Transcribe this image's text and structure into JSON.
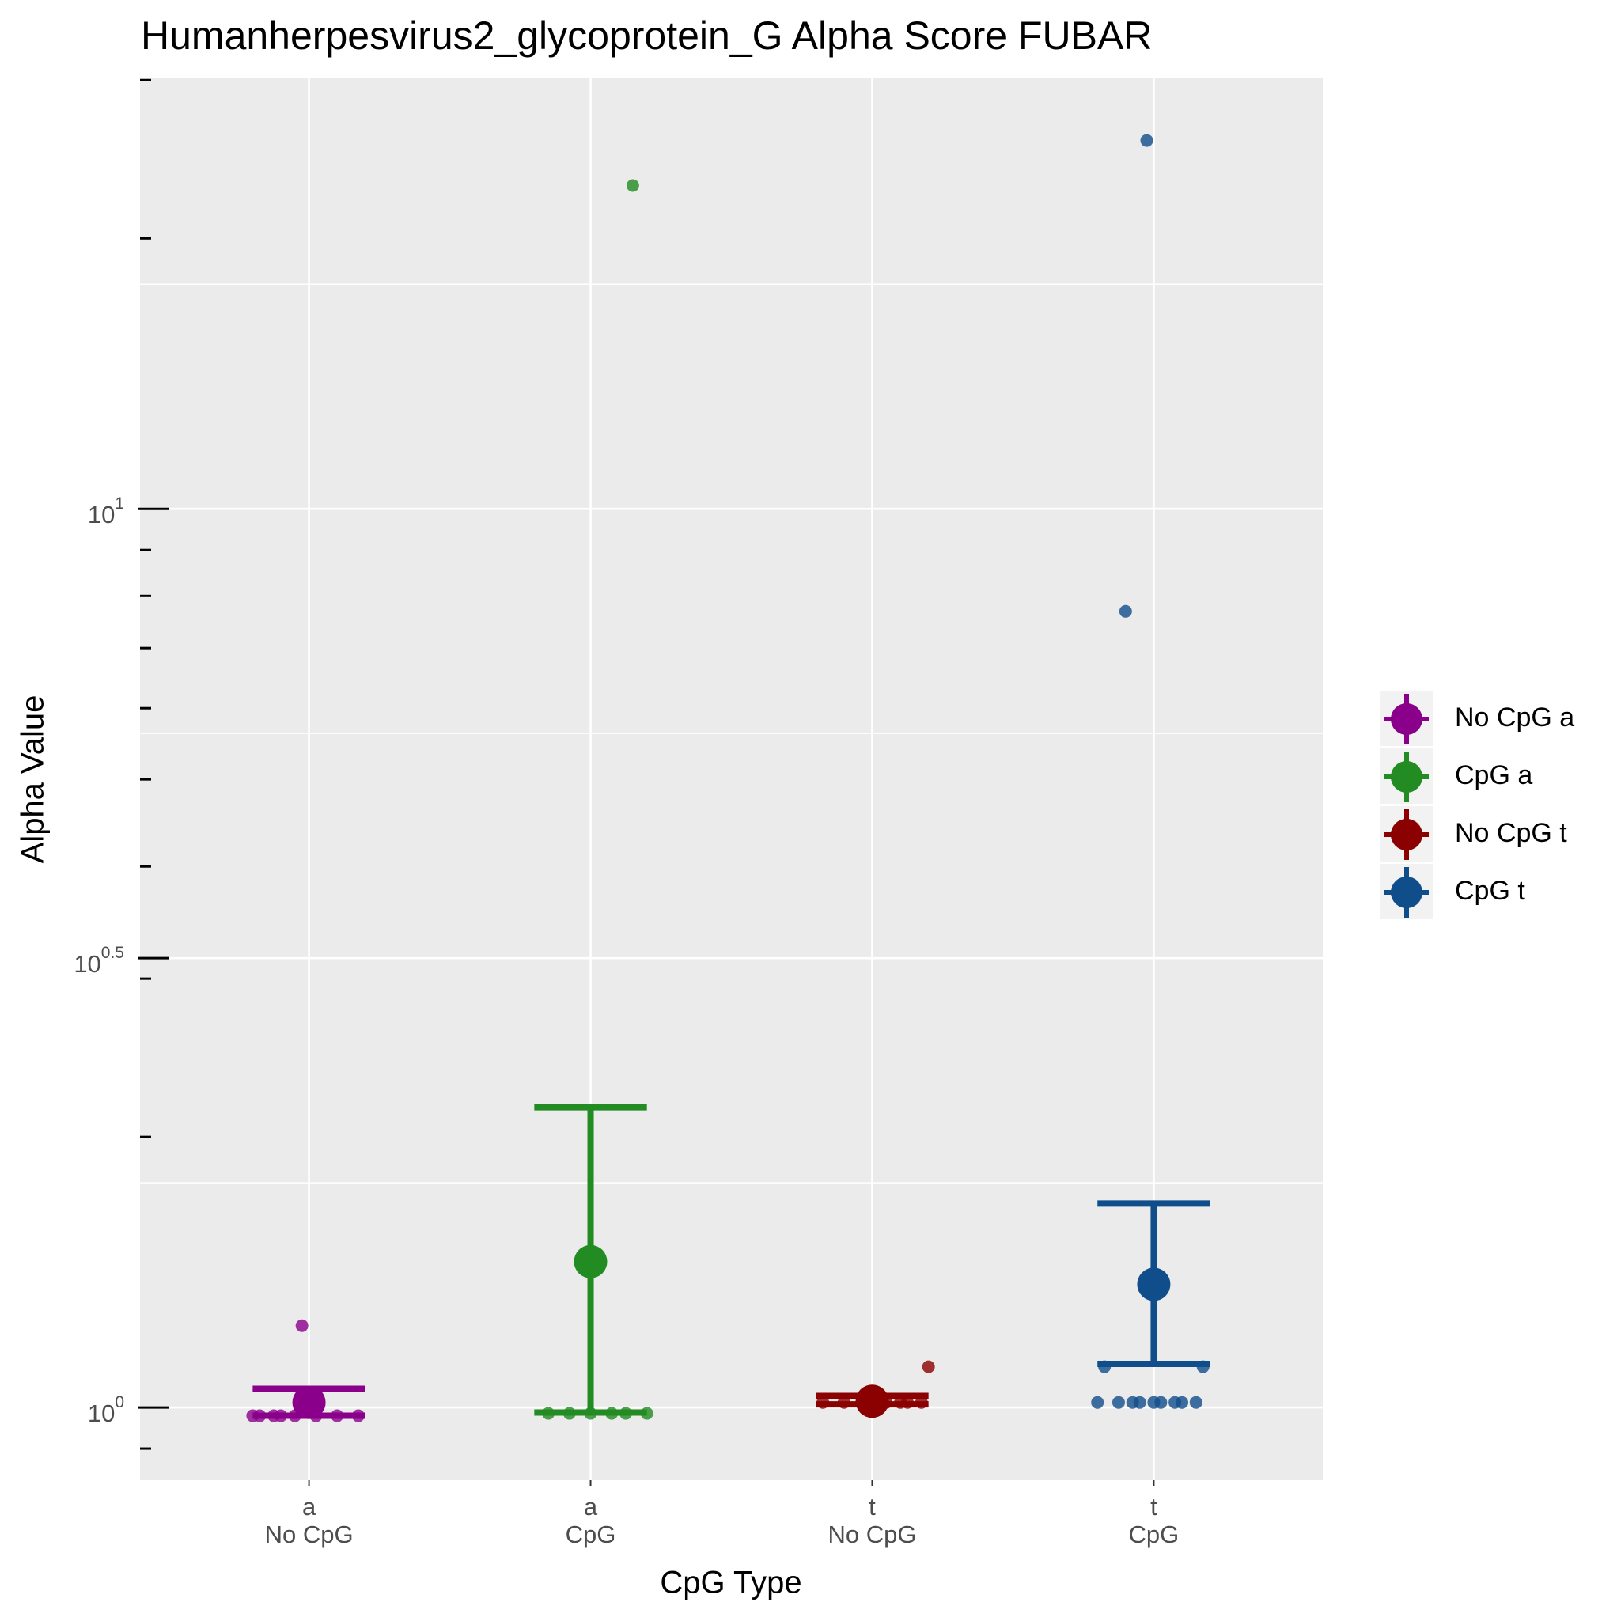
{
  "chart_data": {
    "type": "errorbar",
    "title": "Humanherpesvirus2_glycoprotein_G Alpha Score FUBAR",
    "x_label": "CpG Type",
    "y_label": "Alpha Value",
    "categories": [
      [
        "a",
        "No CpG"
      ],
      [
        "a",
        "CpG"
      ],
      [
        "t",
        "No CpG"
      ],
      [
        "t",
        "CpG"
      ]
    ],
    "y_scale": "log",
    "ylim": [
      0.83,
      30.2
    ],
    "yticks": [
      {
        "value": 1,
        "label": "10",
        "exponent": "0"
      },
      {
        "value": 3.1623,
        "label": "10",
        "exponent": "0.5"
      },
      {
        "value": 10,
        "label": "10",
        "exponent": "1"
      }
    ],
    "minor_yticks": [
      0.9,
      2,
      3,
      4,
      5,
      6,
      7,
      8,
      9,
      20,
      30
    ],
    "grid": true,
    "legend_position": "right",
    "series": [
      {
        "name": "No CpG a",
        "color": "#8B008B",
        "mean": 1.013,
        "lower": 0.979,
        "upper": 1.049,
        "points": [
          0.979,
          0.979,
          0.979,
          0.979,
          0.979,
          0.979,
          0.979,
          0.979,
          1.233
        ]
      },
      {
        "name": "CpG a",
        "color": "#228B22",
        "mean": 1.453,
        "lower": 0.987,
        "upper": 2.158,
        "points": [
          0.985,
          0.985,
          0.985,
          0.985,
          0.985,
          0.985,
          22.9
        ]
      },
      {
        "name": "No CpG t",
        "color": "#8B0000",
        "mean": 1.016,
        "lower": 1.008,
        "upper": 1.03,
        "points": [
          1.013,
          1.013,
          1.013,
          1.013,
          1.013,
          1.013,
          1.013,
          1.013,
          1.11
        ]
      },
      {
        "name": "CpG t",
        "color": "#104E8B",
        "mean": 1.371,
        "lower": 1.118,
        "upper": 1.686,
        "points": [
          1.013,
          1.013,
          1.013,
          1.013,
          1.013,
          1.013,
          1.013,
          1.013,
          1.013,
          1.11,
          1.11,
          7.69,
          25.7
        ]
      }
    ]
  }
}
